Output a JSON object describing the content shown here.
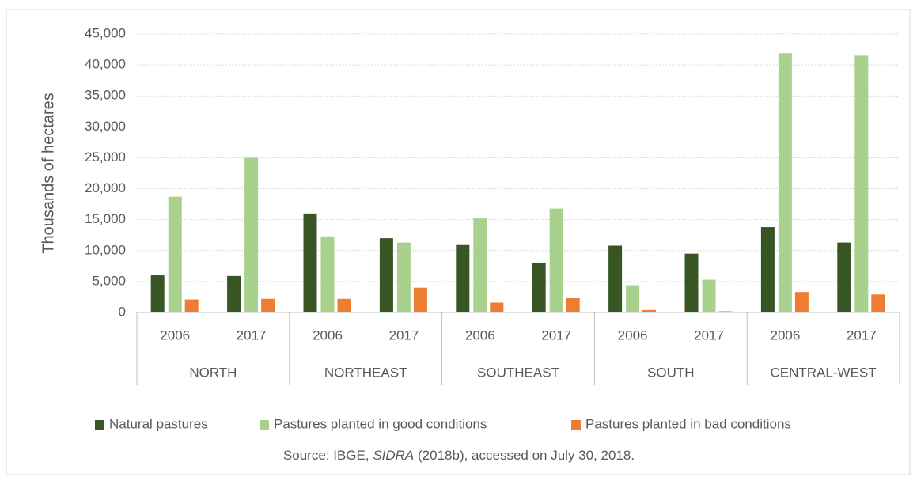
{
  "chart_data": {
    "type": "bar",
    "ylabel": "Thousands of hectares",
    "categories": [
      "2006",
      "2017",
      "2006",
      "2017",
      "2006",
      "2017",
      "2006",
      "2017",
      "2006",
      "2017"
    ],
    "groups": [
      "NORTH",
      "NORTHEAST",
      "SOUTHEAST",
      "SOUTH",
      "CENTRAL-WEST"
    ],
    "series": [
      {
        "name": "Natural pastures",
        "color": "#375623",
        "values": [
          6000,
          5900,
          16000,
          12000,
          10900,
          8000,
          10800,
          9500,
          13800,
          11300
        ]
      },
      {
        "name": "Pastures planted in good conditions",
        "color": "#a9d18e",
        "values": [
          18700,
          25000,
          12300,
          11300,
          15200,
          16800,
          4400,
          5300,
          41900,
          41500
        ]
      },
      {
        "name": "Pastures planted in bad conditions",
        "color": "#ed7d31",
        "values": [
          2100,
          2200,
          2200,
          4000,
          1600,
          2300,
          400,
          200,
          3300,
          2900
        ]
      }
    ],
    "ylim": [
      0,
      45000
    ],
    "yticks": [
      0,
      {
        "value": 5000,
        "label": "5,000"
      },
      {
        "value": 10000,
        "label": "10,000"
      },
      {
        "value": 15000,
        "label": "15,000"
      },
      {
        "value": 20000,
        "label": "20,000"
      },
      {
        "value": 25000,
        "label": "25,000"
      },
      {
        "value": 30000,
        "label": "30,000"
      },
      {
        "value": 35000,
        "label": "35,000"
      },
      {
        "value": 40000,
        "label": "40,000"
      },
      {
        "value": 45000,
        "label": "45,000"
      }
    ],
    "grid": true,
    "legend": "bottom",
    "source": [
      "Source: IBGE, ",
      "SIDRA",
      " (2018b), accessed on July 30, 2018."
    ]
  }
}
